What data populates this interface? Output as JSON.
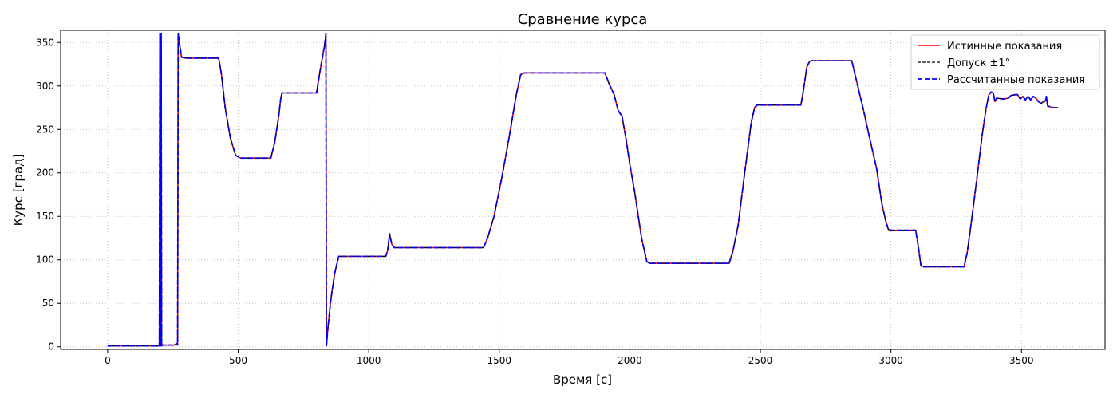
{
  "chart_data": {
    "type": "line",
    "title": "Сравнение курса",
    "xlabel": "Время [с]",
    "ylabel": "Курс [град]",
    "xlim": [
      -180,
      3820
    ],
    "ylim": [
      -3,
      364
    ],
    "xticks": [
      0,
      500,
      1000,
      1500,
      2000,
      2500,
      3000,
      3500
    ],
    "yticks": [
      0,
      50,
      100,
      150,
      200,
      250,
      300,
      350
    ],
    "grid": true,
    "legend_position": "top-right",
    "series": [
      {
        "name": "Истинные показания",
        "color": "#ff0000",
        "style": "solid",
        "points": [
          [
            0,
            1
          ],
          [
            198,
            1
          ],
          [
            200,
            360
          ],
          [
            202,
            1
          ],
          [
            205,
            360
          ],
          [
            207,
            1
          ],
          [
            210,
            2
          ],
          [
            255,
            2
          ],
          [
            266,
            4
          ],
          [
            268,
            2
          ],
          [
            270,
            360
          ],
          [
            276,
            348
          ],
          [
            283,
            333
          ],
          [
            300,
            332
          ],
          [
            425,
            332
          ],
          [
            435,
            315
          ],
          [
            450,
            275
          ],
          [
            470,
            240
          ],
          [
            490,
            220
          ],
          [
            510,
            217
          ],
          [
            625,
            217
          ],
          [
            640,
            235
          ],
          [
            655,
            265
          ],
          [
            663,
            286
          ],
          [
            668,
            292
          ],
          [
            800,
            292
          ],
          [
            815,
            320
          ],
          [
            830,
            345
          ],
          [
            836,
            360
          ],
          [
            838,
            1
          ],
          [
            843,
            20
          ],
          [
            855,
            55
          ],
          [
            870,
            85
          ],
          [
            885,
            104
          ],
          [
            1065,
            104
          ],
          [
            1072,
            110
          ],
          [
            1080,
            130
          ],
          [
            1088,
            118
          ],
          [
            1098,
            114
          ],
          [
            1440,
            114
          ],
          [
            1455,
            125
          ],
          [
            1480,
            150
          ],
          [
            1510,
            195
          ],
          [
            1540,
            245
          ],
          [
            1565,
            290
          ],
          [
            1582,
            313
          ],
          [
            1595,
            315
          ],
          [
            1905,
            315
          ],
          [
            1920,
            303
          ],
          [
            1940,
            290
          ],
          [
            1955,
            272
          ],
          [
            1970,
            265
          ],
          [
            1985,
            240
          ],
          [
            2000,
            210
          ],
          [
            2020,
            175
          ],
          [
            2045,
            125
          ],
          [
            2065,
            98
          ],
          [
            2075,
            96
          ],
          [
            2380,
            96
          ],
          [
            2395,
            110
          ],
          [
            2415,
            140
          ],
          [
            2440,
            200
          ],
          [
            2465,
            258
          ],
          [
            2478,
            275
          ],
          [
            2488,
            278
          ],
          [
            2655,
            278
          ],
          [
            2665,
            295
          ],
          [
            2678,
            322
          ],
          [
            2688,
            328
          ],
          [
            2695,
            329
          ],
          [
            2850,
            329
          ],
          [
            2865,
            310
          ],
          [
            2895,
            272
          ],
          [
            2920,
            238
          ],
          [
            2945,
            205
          ],
          [
            2965,
            165
          ],
          [
            2980,
            145
          ],
          [
            2990,
            135
          ],
          [
            3000,
            134
          ],
          [
            3095,
            134
          ],
          [
            3105,
            115
          ],
          [
            3115,
            93
          ],
          [
            3125,
            92
          ],
          [
            3280,
            92
          ],
          [
            3292,
            108
          ],
          [
            3310,
            148
          ],
          [
            3330,
            195
          ],
          [
            3350,
            245
          ],
          [
            3365,
            275
          ],
          [
            3375,
            290
          ],
          [
            3383,
            293
          ],
          [
            3392,
            292
          ],
          [
            3398,
            282
          ],
          [
            3405,
            286
          ],
          [
            3430,
            285
          ],
          [
            3450,
            286
          ],
          [
            3460,
            289
          ],
          [
            3475,
            290
          ],
          [
            3485,
            290
          ],
          [
            3495,
            285
          ],
          [
            3505,
            288
          ],
          [
            3515,
            284
          ],
          [
            3525,
            288
          ],
          [
            3535,
            284
          ],
          [
            3545,
            288
          ],
          [
            3555,
            286
          ],
          [
            3565,
            282
          ],
          [
            3575,
            280
          ],
          [
            3585,
            282
          ],
          [
            3592,
            283
          ],
          [
            3595,
            288
          ],
          [
            3600,
            277
          ],
          [
            3610,
            276
          ],
          [
            3620,
            275
          ],
          [
            3640,
            275
          ]
        ]
      },
      {
        "name": "Допуск ±1°",
        "color": "#000000",
        "style": "dashed-thin"
      },
      {
        "name": "Рассчитанные показания",
        "color": "#0000ff",
        "style": "dashed"
      }
    ]
  }
}
